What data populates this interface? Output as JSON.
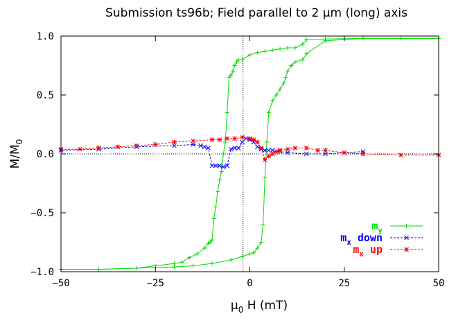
{
  "chart_data": {
    "type": "line",
    "title": "Submission ts96b; Field parallel to 2 µm (long) axis",
    "xlabel": {
      "base": "µ",
      "sub": "0",
      "rest": " H (mT)"
    },
    "ylabel": {
      "base": "M/M",
      "sub": "0"
    },
    "xlim": [
      -50,
      50
    ],
    "ylim": [
      -1.0,
      1.0
    ],
    "xticks": [
      -50,
      -25,
      0,
      25,
      50
    ],
    "xtick_labels": [
      "−50",
      "−25",
      "0",
      "25",
      "50"
    ],
    "yticks": [
      -1.0,
      -0.5,
      0.0,
      0.5,
      1.0
    ],
    "ytick_labels": [
      "−1.0",
      "−0.5",
      "0.0",
      "0.5",
      "1.0"
    ],
    "reference_lines": {
      "horizontal_y": 0.0,
      "vertical_x": -1.8
    },
    "legend_position": "bottom-right",
    "series": [
      {
        "name": "my",
        "legend": {
          "base": "m",
          "sub": "y"
        },
        "color": "#00dd00",
        "marker": "+",
        "dash": "solid",
        "segments": [
          {
            "x": [
              50,
              40,
              30,
              20,
              15,
              14,
              12,
              10,
              8,
              6,
              4,
              2,
              0,
              -2,
              -3,
              -3.5,
              -4,
              -4.5,
              -5,
              -5.5,
              -6,
              -6.5,
              -7,
              -7.5,
              -8,
              -8.5,
              -9,
              -9.5,
              -10,
              -10.5,
              -11,
              -12,
              -14,
              -16,
              -18,
              -20,
              -25,
              -30,
              -40,
              -50
            ],
            "y": [
              0.98,
              0.98,
              0.98,
              0.975,
              0.97,
              0.93,
              0.9,
              0.9,
              0.89,
              0.88,
              0.87,
              0.86,
              0.84,
              0.8,
              0.8,
              0.78,
              0.75,
              0.7,
              0.67,
              0.65,
              0.35,
              0.1,
              0.0,
              -0.15,
              -0.22,
              -0.32,
              -0.45,
              -0.55,
              -0.73,
              -0.75,
              -0.76,
              -0.8,
              -0.85,
              -0.88,
              -0.92,
              -0.93,
              -0.95,
              -0.97,
              -0.98,
              -0.98
            ]
          },
          {
            "x": [
              -50,
              -40,
              -30,
              -20,
              -15,
              -10,
              -5,
              -2,
              0,
              1,
              2,
              3,
              3.5,
              4,
              4.5,
              5,
              6,
              7,
              8,
              9,
              9.5,
              10,
              11,
              12,
              14,
              15,
              20,
              30,
              40,
              50
            ],
            "y": [
              -0.98,
              -0.98,
              -0.97,
              -0.96,
              -0.95,
              -0.93,
              -0.9,
              -0.87,
              -0.85,
              -0.84,
              -0.8,
              -0.75,
              -0.6,
              -0.2,
              0.1,
              0.35,
              0.45,
              0.5,
              0.55,
              0.6,
              0.65,
              0.7,
              0.75,
              0.78,
              0.8,
              0.85,
              0.96,
              0.98,
              0.98,
              0.98
            ]
          }
        ]
      },
      {
        "name": "mx down",
        "legend": {
          "base": "m",
          "sub": "x",
          "rest": " down"
        },
        "color": "#0000ff",
        "marker": "x",
        "dash": "dashed",
        "segments": [
          {
            "x": [
              30,
              25,
              20,
              15,
              10,
              8,
              6,
              5,
              4,
              3,
              2,
              1,
              0,
              -1,
              -2,
              -3,
              -4,
              -5,
              -6,
              -7,
              -8,
              -9,
              -10,
              -11,
              -12,
              -13,
              -15,
              -20,
              -30,
              -40,
              -50
            ],
            "y": [
              0.02,
              0.01,
              0.0,
              0.0,
              0.01,
              0.02,
              0.03,
              0.03,
              0.03,
              0.04,
              0.06,
              0.1,
              0.12,
              0.13,
              0.1,
              0.05,
              0.05,
              0.04,
              -0.1,
              -0.11,
              -0.1,
              -0.1,
              -0.1,
              0.05,
              0.06,
              0.07,
              0.08,
              0.07,
              0.06,
              0.04,
              0.03
            ]
          }
        ]
      },
      {
        "name": "mx up",
        "legend": {
          "base": "m",
          "sub": "x",
          "rest": " up"
        },
        "color": "#ff0000",
        "marker": "*",
        "dash": "dashed",
        "segments": [
          {
            "x": [
              -50,
              -45,
              -40,
              -35,
              -30,
              -25,
              -20,
              -15,
              -10,
              -8,
              -6,
              -4,
              -2,
              0,
              1,
              2,
              3,
              4,
              5,
              6,
              7,
              8,
              10,
              12,
              15,
              18,
              20,
              25,
              30,
              40,
              50
            ],
            "y": [
              0.04,
              0.04,
              0.05,
              0.06,
              0.07,
              0.08,
              0.1,
              0.11,
              0.12,
              0.12,
              0.13,
              0.13,
              0.14,
              0.13,
              0.12,
              0.1,
              0.05,
              -0.05,
              -0.02,
              0.0,
              0.02,
              0.03,
              0.04,
              0.05,
              0.05,
              0.03,
              0.03,
              0.01,
              0.0,
              -0.01,
              -0.01
            ]
          }
        ]
      }
    ]
  }
}
